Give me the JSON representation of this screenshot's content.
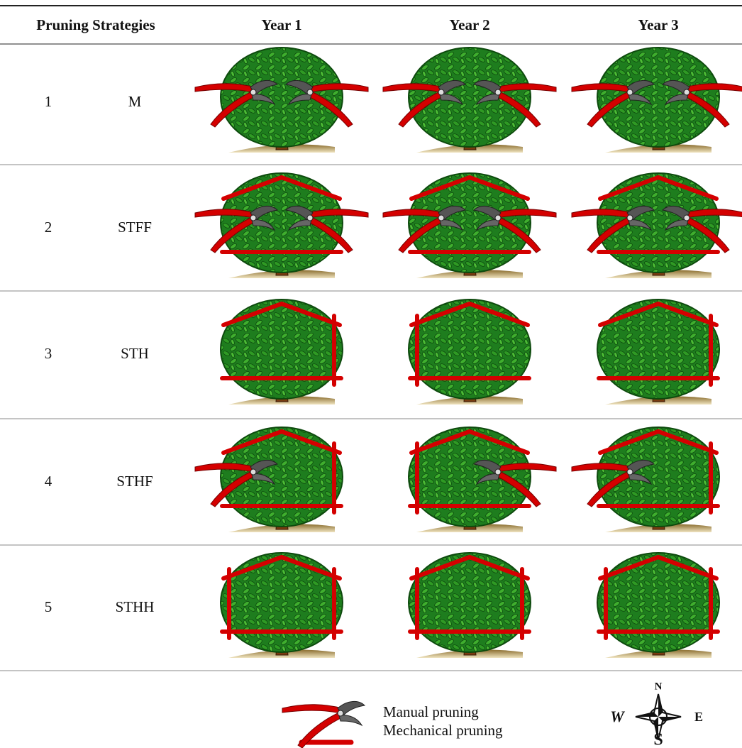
{
  "table": {
    "header": [
      "Pruning Strategies",
      "Year 1",
      "Year 2",
      "Year 3"
    ],
    "rows": [
      [
        "1",
        "M"
      ],
      [
        "2",
        "STFF"
      ],
      [
        "3",
        "STH"
      ],
      [
        "4",
        "STHF"
      ],
      [
        "5",
        "STHH"
      ]
    ]
  },
  "legend": {
    "manual": "Manual pruning",
    "mechanical": "Mechanical pruning"
  },
  "compass": {
    "n": "N",
    "w": "W",
    "e": "E",
    "s": "S"
  }
}
